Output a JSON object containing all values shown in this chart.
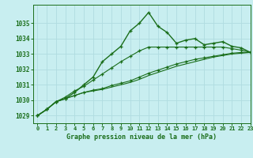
{
  "title": "Graphe pression niveau de la mer (hPa)",
  "background_color": "#c8eef0",
  "grid_color": "#b0dce0",
  "line_color": "#1a6e1a",
  "xlim": [
    -0.5,
    23
  ],
  "ylim": [
    1028.5,
    1036.2
  ],
  "yticks": [
    1029,
    1030,
    1031,
    1032,
    1033,
    1034,
    1035
  ],
  "xtick_labels": [
    "0",
    "1",
    "2",
    "3",
    "4",
    "5",
    "6",
    "7",
    "8",
    "9",
    "10",
    "11",
    "12",
    "13",
    "14",
    "15",
    "16",
    "17",
    "18",
    "19",
    "20",
    "21",
    "22",
    "23"
  ],
  "series": [
    [
      1029.0,
      1029.4,
      1029.9,
      1030.1,
      1030.5,
      1031.0,
      1031.5,
      1032.5,
      1033.0,
      1033.5,
      1034.5,
      1035.0,
      1035.7,
      1034.8,
      1034.4,
      1033.7,
      1033.9,
      1034.0,
      1033.6,
      1033.7,
      1033.8,
      1033.5,
      1033.4,
      1033.1
    ],
    [
      1029.0,
      1029.4,
      1029.9,
      1030.1,
      1030.3,
      1030.5,
      1030.6,
      1030.7,
      1030.85,
      1031.0,
      1031.15,
      1031.35,
      1031.6,
      1031.8,
      1032.0,
      1032.2,
      1032.35,
      1032.5,
      1032.65,
      1032.8,
      1032.9,
      1033.0,
      1033.05,
      1033.1
    ],
    [
      1029.0,
      1029.4,
      1029.9,
      1030.1,
      1030.3,
      1030.5,
      1030.65,
      1030.75,
      1030.95,
      1031.1,
      1031.25,
      1031.5,
      1031.75,
      1031.95,
      1032.15,
      1032.35,
      1032.5,
      1032.65,
      1032.75,
      1032.85,
      1032.95,
      1033.05,
      1033.1,
      1033.1
    ],
    [
      1029.0,
      1029.4,
      1029.9,
      1030.2,
      1030.6,
      1030.9,
      1031.3,
      1031.7,
      1032.1,
      1032.5,
      1032.85,
      1033.2,
      1033.45,
      1033.45,
      1033.45,
      1033.45,
      1033.45,
      1033.45,
      1033.45,
      1033.45,
      1033.45,
      1033.35,
      1033.25,
      1033.1
    ]
  ],
  "series_markers": [
    true,
    false,
    true,
    true
  ],
  "series_linewidths": [
    1.0,
    0.8,
    0.8,
    0.8
  ]
}
